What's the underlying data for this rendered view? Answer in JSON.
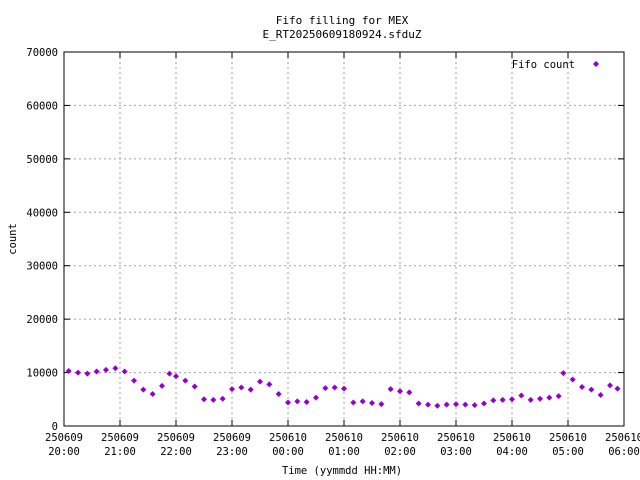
{
  "chart_data": {
    "type": "scatter",
    "title": "Fifo filling for MEX",
    "subtitle": "E_RT20250609180924.sfduZ",
    "xlabel": "Time (yymmdd HH:MM)",
    "ylabel": "count",
    "ylim": [
      0,
      70000
    ],
    "y_ticks": [
      "0",
      "10000",
      "20000",
      "30000",
      "40000",
      "50000",
      "60000",
      "70000"
    ],
    "xlim": [
      "2025-06-09 20:00",
      "2025-06-10 06:00"
    ],
    "x_ticks": [
      {
        "date": "250609",
        "time": "20:00"
      },
      {
        "date": "250609",
        "time": "21:00"
      },
      {
        "date": "250609",
        "time": "22:00"
      },
      {
        "date": "250609",
        "time": "23:00"
      },
      {
        "date": "250610",
        "time": "00:00"
      },
      {
        "date": "250610",
        "time": "01:00"
      },
      {
        "date": "250610",
        "time": "02:00"
      },
      {
        "date": "250610",
        "time": "03:00"
      },
      {
        "date": "250610",
        "time": "04:00"
      },
      {
        "date": "250610",
        "time": "05:00"
      },
      {
        "date": "250610",
        "time": "06:00"
      }
    ],
    "grid": true,
    "legend": "top-right",
    "series": [
      {
        "name": "Fifo count",
        "color": "#9400d3",
        "marker": "diamond",
        "points": [
          [
            "2025-06-09 20:05",
            10300
          ],
          [
            "2025-06-09 20:15",
            10000
          ],
          [
            "2025-06-09 20:25",
            9800
          ],
          [
            "2025-06-09 20:35",
            10200
          ],
          [
            "2025-06-09 20:45",
            10500
          ],
          [
            "2025-06-09 20:55",
            10800
          ],
          [
            "2025-06-09 21:05",
            10200
          ],
          [
            "2025-06-09 21:15",
            8500
          ],
          [
            "2025-06-09 21:25",
            6800
          ],
          [
            "2025-06-09 21:35",
            6000
          ],
          [
            "2025-06-09 21:45",
            7500
          ],
          [
            "2025-06-09 21:53",
            9800
          ],
          [
            "2025-06-09 22:00",
            9300
          ],
          [
            "2025-06-09 22:10",
            8500
          ],
          [
            "2025-06-09 22:20",
            7400
          ],
          [
            "2025-06-09 22:30",
            5000
          ],
          [
            "2025-06-09 22:40",
            4900
          ],
          [
            "2025-06-09 22:50",
            5100
          ],
          [
            "2025-06-09 23:00",
            6900
          ],
          [
            "2025-06-09 23:10",
            7200
          ],
          [
            "2025-06-09 23:20",
            6800
          ],
          [
            "2025-06-09 23:30",
            8300
          ],
          [
            "2025-06-09 23:40",
            7800
          ],
          [
            "2025-06-09 23:50",
            6000
          ],
          [
            "2025-06-10 00:00",
            4400
          ],
          [
            "2025-06-10 00:10",
            4600
          ],
          [
            "2025-06-10 00:20",
            4500
          ],
          [
            "2025-06-10 00:30",
            5300
          ],
          [
            "2025-06-10 00:40",
            7100
          ],
          [
            "2025-06-10 00:50",
            7200
          ],
          [
            "2025-06-10 01:00",
            7000
          ],
          [
            "2025-06-10 01:10",
            4400
          ],
          [
            "2025-06-10 01:20",
            4600
          ],
          [
            "2025-06-10 01:30",
            4300
          ],
          [
            "2025-06-10 01:40",
            4100
          ],
          [
            "2025-06-10 01:50",
            6900
          ],
          [
            "2025-06-10 02:00",
            6500
          ],
          [
            "2025-06-10 02:10",
            6300
          ],
          [
            "2025-06-10 02:20",
            4200
          ],
          [
            "2025-06-10 02:30",
            4000
          ],
          [
            "2025-06-10 02:40",
            3800
          ],
          [
            "2025-06-10 02:50",
            4000
          ],
          [
            "2025-06-10 03:00",
            4100
          ],
          [
            "2025-06-10 03:10",
            4000
          ],
          [
            "2025-06-10 03:20",
            3900
          ],
          [
            "2025-06-10 03:30",
            4200
          ],
          [
            "2025-06-10 03:40",
            4800
          ],
          [
            "2025-06-10 03:50",
            4900
          ],
          [
            "2025-06-10 04:00",
            5000
          ],
          [
            "2025-06-10 04:10",
            5700
          ],
          [
            "2025-06-10 04:20",
            4900
          ],
          [
            "2025-06-10 04:30",
            5100
          ],
          [
            "2025-06-10 04:40",
            5300
          ],
          [
            "2025-06-10 04:50",
            5600
          ],
          [
            "2025-06-10 04:55",
            9900
          ],
          [
            "2025-06-10 05:05",
            8700
          ],
          [
            "2025-06-10 05:15",
            7300
          ],
          [
            "2025-06-10 05:25",
            6800
          ],
          [
            "2025-06-10 05:35",
            5800
          ],
          [
            "2025-06-10 05:45",
            7600
          ],
          [
            "2025-06-10 05:53",
            7000
          ]
        ]
      }
    ]
  }
}
